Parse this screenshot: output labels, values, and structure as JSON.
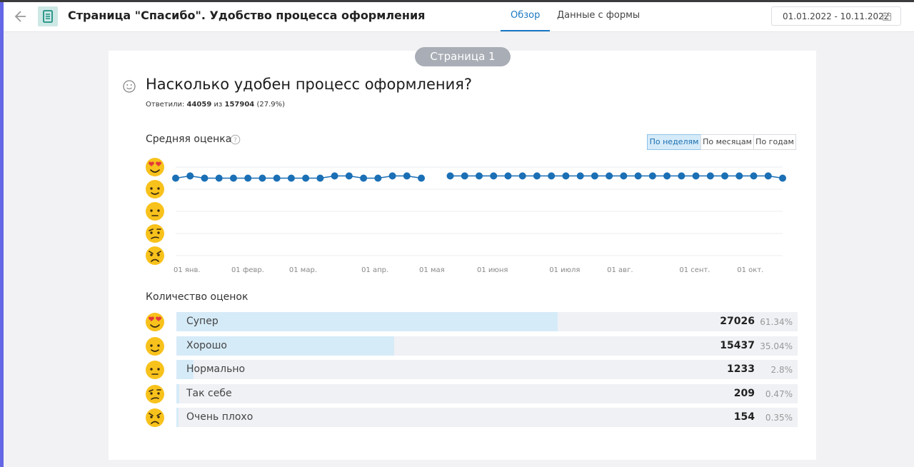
{
  "header": {
    "title": "Страница \"Спасибо\". Удобство процесса оформления",
    "tabs": [
      "Обзор",
      "Данные с формы"
    ],
    "active_tab": 0,
    "date_range": "01.01.2022 - 10.11.2022"
  },
  "page_badge": "Страница 1",
  "question": {
    "title": "Насколько удобен процесс оформления?",
    "answered_label": "Ответили:",
    "answered": 44059,
    "of": "из",
    "total": 157904,
    "share_label": "(27.9%)"
  },
  "average_chart": {
    "type": "line",
    "title": "Средняя оценка",
    "periods": [
      "По неделям",
      "По месяцам",
      "По годам"
    ],
    "active_period": 0,
    "categories": [
      "01 янв.",
      null,
      null,
      null,
      "01 февр.",
      null,
      null,
      null,
      "01 мар.",
      null,
      null,
      null,
      null,
      "01 апр.",
      null,
      null,
      null,
      "01 мая",
      null,
      null,
      null,
      "01 июня",
      null,
      null,
      null,
      null,
      "01 июля",
      null,
      null,
      null,
      "01 авг.",
      null,
      null,
      null,
      null,
      "01 сент.",
      null,
      null,
      null,
      "01 окт.",
      null,
      null,
      null
    ],
    "values": [
      4.5,
      4.6,
      4.5,
      4.5,
      4.5,
      4.5,
      4.5,
      4.5,
      4.5,
      4.5,
      4.5,
      4.6,
      4.6,
      4.5,
      4.5,
      4.6,
      4.6,
      4.5,
      null,
      4.6,
      4.6,
      4.6,
      4.6,
      4.6,
      4.6,
      4.6,
      4.6,
      4.6,
      4.6,
      4.6,
      4.6,
      4.6,
      4.6,
      4.6,
      4.6,
      4.6,
      4.6,
      4.6,
      4.6,
      4.6,
      4.6,
      4.6,
      4.5
    ],
    "color": "#1a6fb5",
    "ylim": [
      1,
      5
    ],
    "yticks": [
      1,
      2,
      3,
      4,
      5
    ],
    "grid": true
  },
  "counts_chart": {
    "type": "bar",
    "title": "Количество оценок",
    "categories": [
      "Супер",
      "Хорошо",
      "Нормально",
      "Так себе",
      "Очень плохо"
    ],
    "values": [
      27026,
      15437,
      1233,
      209,
      154
    ],
    "shares": [
      61.34,
      35.04,
      2.8,
      0.47,
      0.35
    ],
    "share_labels": [
      "61.34%",
      "35.04%",
      "2.8%",
      "0.47%",
      "0.35%"
    ],
    "xlim": [
      0,
      100
    ],
    "bar_color": "#d6ebf8",
    "track_color": "#f0f1f5"
  }
}
